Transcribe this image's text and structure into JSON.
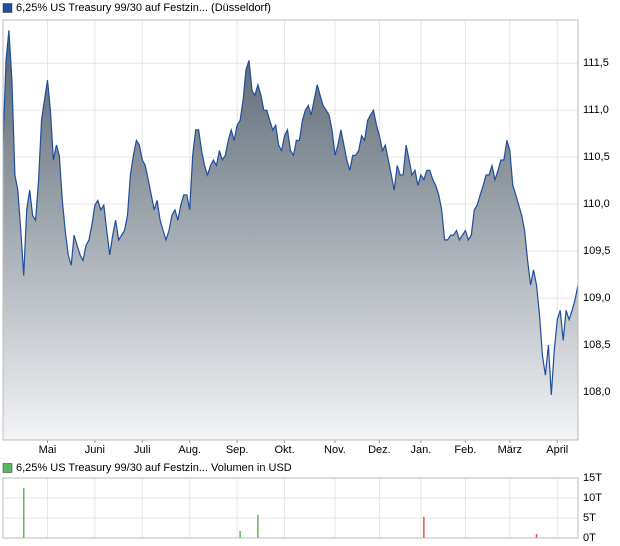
{
  "chart_data": [
    {
      "type": "line",
      "series": [
        {
          "name": "6,25% US Treasury 99/30 auf Festzin... (Düsseldorf)",
          "color": "#1f4e9c",
          "values": [
            110.63,
            111.53,
            111.85,
            111.32,
            110.31,
            110.15,
            109.72,
            109.24,
            109.94,
            110.15,
            109.88,
            109.83,
            110.26,
            110.89,
            111.11,
            111.32,
            111.0,
            110.47,
            110.63,
            110.52,
            110.04,
            109.72,
            109.46,
            109.35,
            109.67,
            109.56,
            109.46,
            109.4,
            109.56,
            109.62,
            109.78,
            109.99,
            110.04,
            109.94,
            109.99,
            109.72,
            109.46,
            109.67,
            109.83,
            109.62,
            109.67,
            109.72,
            109.88,
            110.31,
            110.52,
            110.68,
            110.63,
            110.47,
            110.41,
            110.26,
            110.1,
            109.94,
            110.04,
            109.83,
            109.72,
            109.62,
            109.72,
            109.88,
            109.94,
            109.83,
            109.99,
            110.1,
            110.1,
            109.94,
            110.52,
            110.79,
            110.79,
            110.57,
            110.41,
            110.31,
            110.41,
            110.47,
            110.41,
            110.57,
            110.47,
            110.52,
            110.68,
            110.79,
            110.68,
            110.84,
            110.89,
            111.11,
            111.43,
            111.53,
            111.21,
            111.16,
            111.27,
            111.16,
            111.0,
            111.0,
            110.89,
            110.79,
            110.84,
            110.63,
            110.57,
            110.73,
            110.79,
            110.57,
            110.52,
            110.68,
            110.68,
            110.89,
            111.0,
            111.05,
            110.95,
            111.11,
            111.27,
            111.16,
            111.05,
            111.0,
            110.95,
            110.79,
            110.52,
            110.63,
            110.79,
            110.63,
            110.47,
            110.36,
            110.52,
            110.52,
            110.57,
            110.73,
            110.68,
            110.89,
            110.95,
            111.0,
            110.84,
            110.73,
            110.57,
            110.63,
            110.47,
            110.31,
            110.15,
            110.41,
            110.31,
            110.31,
            110.63,
            110.47,
            110.31,
            110.36,
            110.2,
            110.31,
            110.26,
            110.36,
            110.36,
            110.26,
            110.2,
            110.1,
            109.94,
            109.62,
            109.62,
            109.67,
            109.67,
            109.72,
            109.62,
            109.67,
            109.72,
            109.62,
            109.67,
            109.94,
            109.99,
            110.1,
            110.2,
            110.31,
            110.31,
            110.41,
            110.26,
            110.36,
            110.47,
            110.47,
            110.68,
            110.57,
            110.2,
            110.1,
            109.99,
            109.88,
            109.72,
            109.4,
            109.14,
            109.3,
            109.14,
            108.82,
            108.39,
            108.18,
            108.5,
            107.97,
            108.45,
            108.77,
            108.87,
            108.55,
            108.87,
            108.77,
            108.87,
            108.98,
            109.14
          ]
        }
      ],
      "x": [
        0,
        1,
        2,
        3,
        4,
        5,
        6,
        7,
        8,
        9,
        10,
        11,
        12,
        13,
        14,
        15,
        16,
        17,
        18,
        19,
        20,
        21,
        22,
        23,
        24,
        25,
        26,
        27,
        28,
        29,
        30,
        31,
        32,
        33,
        34,
        35,
        36,
        37,
        38,
        39,
        40,
        41,
        42,
        43,
        44,
        45,
        46,
        47,
        48,
        49,
        50,
        51,
        52,
        53,
        54,
        55,
        56,
        57,
        58,
        59,
        60,
        61,
        62,
        63,
        64,
        65,
        66,
        67,
        68,
        69,
        70,
        71,
        72,
        73,
        74,
        75,
        76,
        77,
        78,
        79,
        80,
        81,
        82,
        83,
        84,
        85,
        86,
        87,
        88,
        89,
        90,
        91,
        92,
        93,
        94,
        95,
        96,
        97,
        98,
        99,
        100,
        101,
        102,
        103,
        104,
        105,
        106,
        107,
        108,
        109,
        110,
        111,
        112,
        113,
        114,
        115,
        116,
        117,
        118,
        119,
        120,
        121,
        122,
        123,
        124,
        125,
        126,
        127,
        128,
        129,
        130,
        131,
        132,
        133,
        134,
        135,
        136,
        137,
        138,
        139,
        140,
        141,
        142,
        143,
        144,
        145,
        146,
        147,
        148,
        149,
        150,
        151,
        152,
        153,
        154,
        155,
        156,
        157,
        158,
        159,
        160,
        161,
        162,
        163,
        164,
        165,
        166,
        167,
        168,
        169,
        170,
        171,
        172,
        173,
        174,
        175,
        176,
        177,
        178,
        179,
        180,
        181,
        182,
        183,
        184,
        185,
        186,
        187,
        188,
        189,
        190,
        191,
        192,
        193,
        194
      ],
      "xlim": [
        0,
        194
      ],
      "xticks": [
        {
          "value": 15,
          "label": "Mai"
        },
        {
          "value": 31,
          "label": "Juni"
        },
        {
          "value": 47,
          "label": "Juli"
        },
        {
          "value": 63,
          "label": "Aug."
        },
        {
          "value": 79,
          "label": "Sep."
        },
        {
          "value": 95,
          "label": "Okt."
        },
        {
          "value": 112,
          "label": "Nov."
        },
        {
          "value": 127,
          "label": "Dez."
        },
        {
          "value": 141,
          "label": "Jan."
        },
        {
          "value": 156,
          "label": "Feb."
        },
        {
          "value": 171,
          "label": "März"
        },
        {
          "value": 187,
          "label": "April"
        }
      ],
      "ylim": [
        107.49,
        111.96
      ],
      "yticks": [
        {
          "value": 108.0,
          "label": "108,0"
        },
        {
          "value": 108.5,
          "label": "108,5"
        },
        {
          "value": 109.0,
          "label": "109,0"
        },
        {
          "value": 109.5,
          "label": "109,5"
        },
        {
          "value": 110.0,
          "label": "110,0"
        },
        {
          "value": 110.5,
          "label": "110,5"
        },
        {
          "value": 111.0,
          "label": "111,0"
        },
        {
          "value": 111.5,
          "label": "111,5"
        }
      ],
      "grid": true
    },
    {
      "type": "bar",
      "series": [
        {
          "name": "6,25% US Treasury 99/30 auf Festzin... Volumen in USD",
          "color": "#5cb85c",
          "values": [
            12.5,
            1.8,
            5.8,
            5.3,
            1.0
          ],
          "colors": [
            "#5cb85c",
            "#5cb85c",
            "#5cb85c",
            "#d9534f",
            "#d9534f"
          ]
        }
      ],
      "x": [
        7,
        80,
        86,
        142,
        180
      ],
      "xlim": [
        0,
        194
      ],
      "ylim": [
        0,
        15
      ],
      "yticks": [
        {
          "value": 0,
          "label": "0T"
        },
        {
          "value": 5,
          "label": "5T"
        },
        {
          "value": 10,
          "label": "10T"
        },
        {
          "value": 15,
          "label": "15T"
        }
      ],
      "grid": true
    }
  ]
}
